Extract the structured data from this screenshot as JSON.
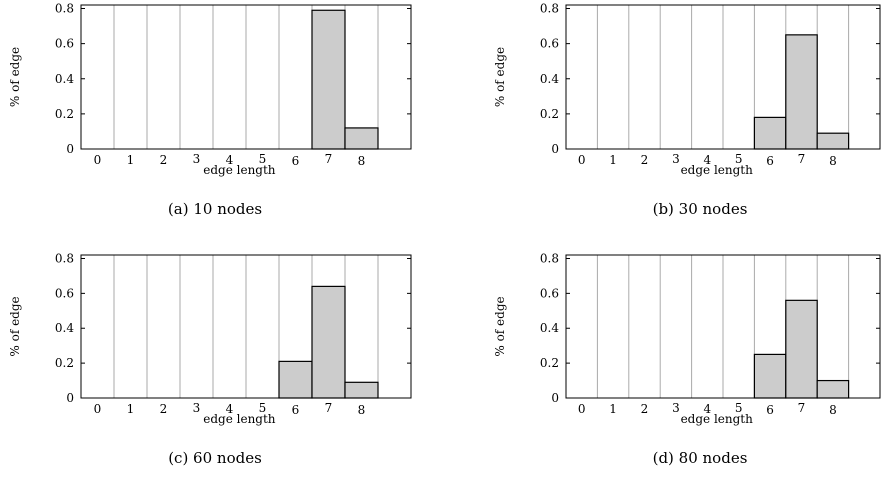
{
  "chart_data": [
    {
      "type": "bar",
      "caption": "(a) 10 nodes",
      "xlabel": "edge length",
      "ylabel": "% of edge",
      "categories": [
        "0",
        "1",
        "2",
        "3",
        "4",
        "5",
        "6",
        "7",
        "8"
      ],
      "values": [
        0,
        0,
        0,
        0,
        0,
        0,
        0,
        0.79,
        0.12
      ],
      "yticks": [
        "0",
        "0.2",
        "0.4",
        "0.6",
        "0.8"
      ],
      "ylim": [
        0,
        0.82
      ],
      "grid": "vertical"
    },
    {
      "type": "bar",
      "caption": "(b) 30 nodes",
      "xlabel": "edge length",
      "ylabel": "% of edge",
      "categories": [
        "0",
        "1",
        "2",
        "3",
        "4",
        "5",
        "6",
        "7",
        "8"
      ],
      "values": [
        0,
        0,
        0,
        0,
        0,
        0,
        0.18,
        0.65,
        0.09
      ],
      "yticks": [
        "0",
        "0.2",
        "0.4",
        "0.6",
        "0.8"
      ],
      "ylim": [
        0,
        0.82
      ],
      "grid": "vertical"
    },
    {
      "type": "bar",
      "caption": "(c) 60 nodes",
      "xlabel": "edge length",
      "ylabel": "% of edge",
      "categories": [
        "0",
        "1",
        "2",
        "3",
        "4",
        "5",
        "6",
        "7",
        "8"
      ],
      "values": [
        0,
        0,
        0,
        0,
        0,
        0,
        0.21,
        0.64,
        0.09
      ],
      "yticks": [
        "0",
        "0.2",
        "0.4",
        "0.6",
        "0.8"
      ],
      "ylim": [
        0,
        0.82
      ],
      "grid": "vertical"
    },
    {
      "type": "bar",
      "caption": "(d) 80 nodes",
      "xlabel": "edge length",
      "ylabel": "% of edge",
      "categories": [
        "0",
        "1",
        "2",
        "3",
        "4",
        "5",
        "6",
        "7",
        "8"
      ],
      "values": [
        0,
        0,
        0,
        0,
        0,
        0,
        0.25,
        0.56,
        0.1
      ],
      "yticks": [
        "0",
        "0.2",
        "0.4",
        "0.6",
        "0.8"
      ],
      "ylim": [
        0,
        0.82
      ],
      "grid": "vertical"
    }
  ],
  "colors": {
    "bar_fill": "#cccccc",
    "bar_stroke": "#000000",
    "grid": "#aaaaaa",
    "frame": "#000000"
  }
}
